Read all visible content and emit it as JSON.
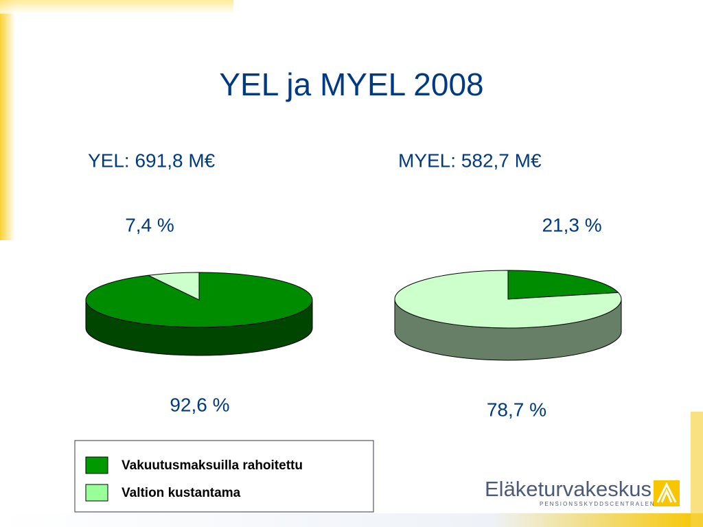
{
  "title": "YEL ja MYEL 2008",
  "chart_data": [
    {
      "type": "pie",
      "title": "YEL: 691,8 M€",
      "categories": [
        "Vakuutusmaksuilla rahoitettu",
        "Valtion kustantama"
      ],
      "values": [
        92.6,
        7.4
      ],
      "value_labels": [
        "92,6 %",
        "7,4 %"
      ],
      "colors": [
        "#008c00",
        "#ccffcc"
      ]
    },
    {
      "type": "pie",
      "title": "MYEL: 582,7 M€",
      "categories": [
        "Vakuutusmaksuilla rahoitettu",
        "Valtion kustantama"
      ],
      "values": [
        21.3,
        78.7
      ],
      "value_labels": [
        "21,3 %",
        "78,7 %"
      ],
      "colors": [
        "#008c00",
        "#ccffcc"
      ]
    }
  ],
  "legend": {
    "colors": [
      "#009900",
      "#99ff99"
    ]
  },
  "logo": {
    "name": "Eläketurvakeskus",
    "subtitle": "PENSIONSSKYDDSCENTRALEN"
  }
}
